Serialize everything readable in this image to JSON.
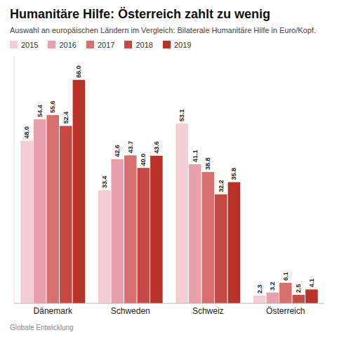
{
  "chart_data": {
    "type": "bar",
    "title": "Humanitäre Hilfe: Österreich zahlt zu wenig",
    "subtitle": "Auswahl an europäischen Ländern im Vergleich: Bilaterale Humanitäre Hilfe in Euro/Kopf.",
    "footer": "Globale Entwicklung",
    "categories": [
      "Dänemark",
      "Schweden",
      "Schweiz",
      "Österreich"
    ],
    "series": [
      {
        "name": "2015",
        "color": "#f2cdd3",
        "values": [
          48.0,
          33.4,
          53.1,
          2.3
        ],
        "value_labels": [
          "48.0",
          "33.4",
          "53.1",
          "2.3"
        ]
      },
      {
        "name": "2016",
        "color": "#e8a0aa",
        "values": [
          54.4,
          42.6,
          41.1,
          3.2
        ],
        "value_labels": [
          "54.4",
          "42.6",
          "41.1",
          "3.2"
        ]
      },
      {
        "name": "2017",
        "color": "#d97070",
        "values": [
          55.6,
          43.7,
          38.8,
          6.1
        ],
        "value_labels": [
          "55.6",
          "43.7",
          "38.8",
          "6.1"
        ]
      },
      {
        "name": "2018",
        "color": "#c44b45",
        "values": [
          52.4,
          40.0,
          32.2,
          2.5
        ],
        "value_labels": [
          "52.4",
          "40.0",
          "32.2",
          "2.5"
        ]
      },
      {
        "name": "2019",
        "color": "#b83228",
        "values": [
          66.0,
          43.6,
          35.8,
          4.1
        ],
        "value_labels": [
          "66.0",
          "43.6",
          "35.8",
          "4.1"
        ]
      }
    ],
    "ylim": [
      0,
      73
    ],
    "grid": false,
    "legend": "top",
    "data_labels": true,
    "tick_labels": "x"
  }
}
